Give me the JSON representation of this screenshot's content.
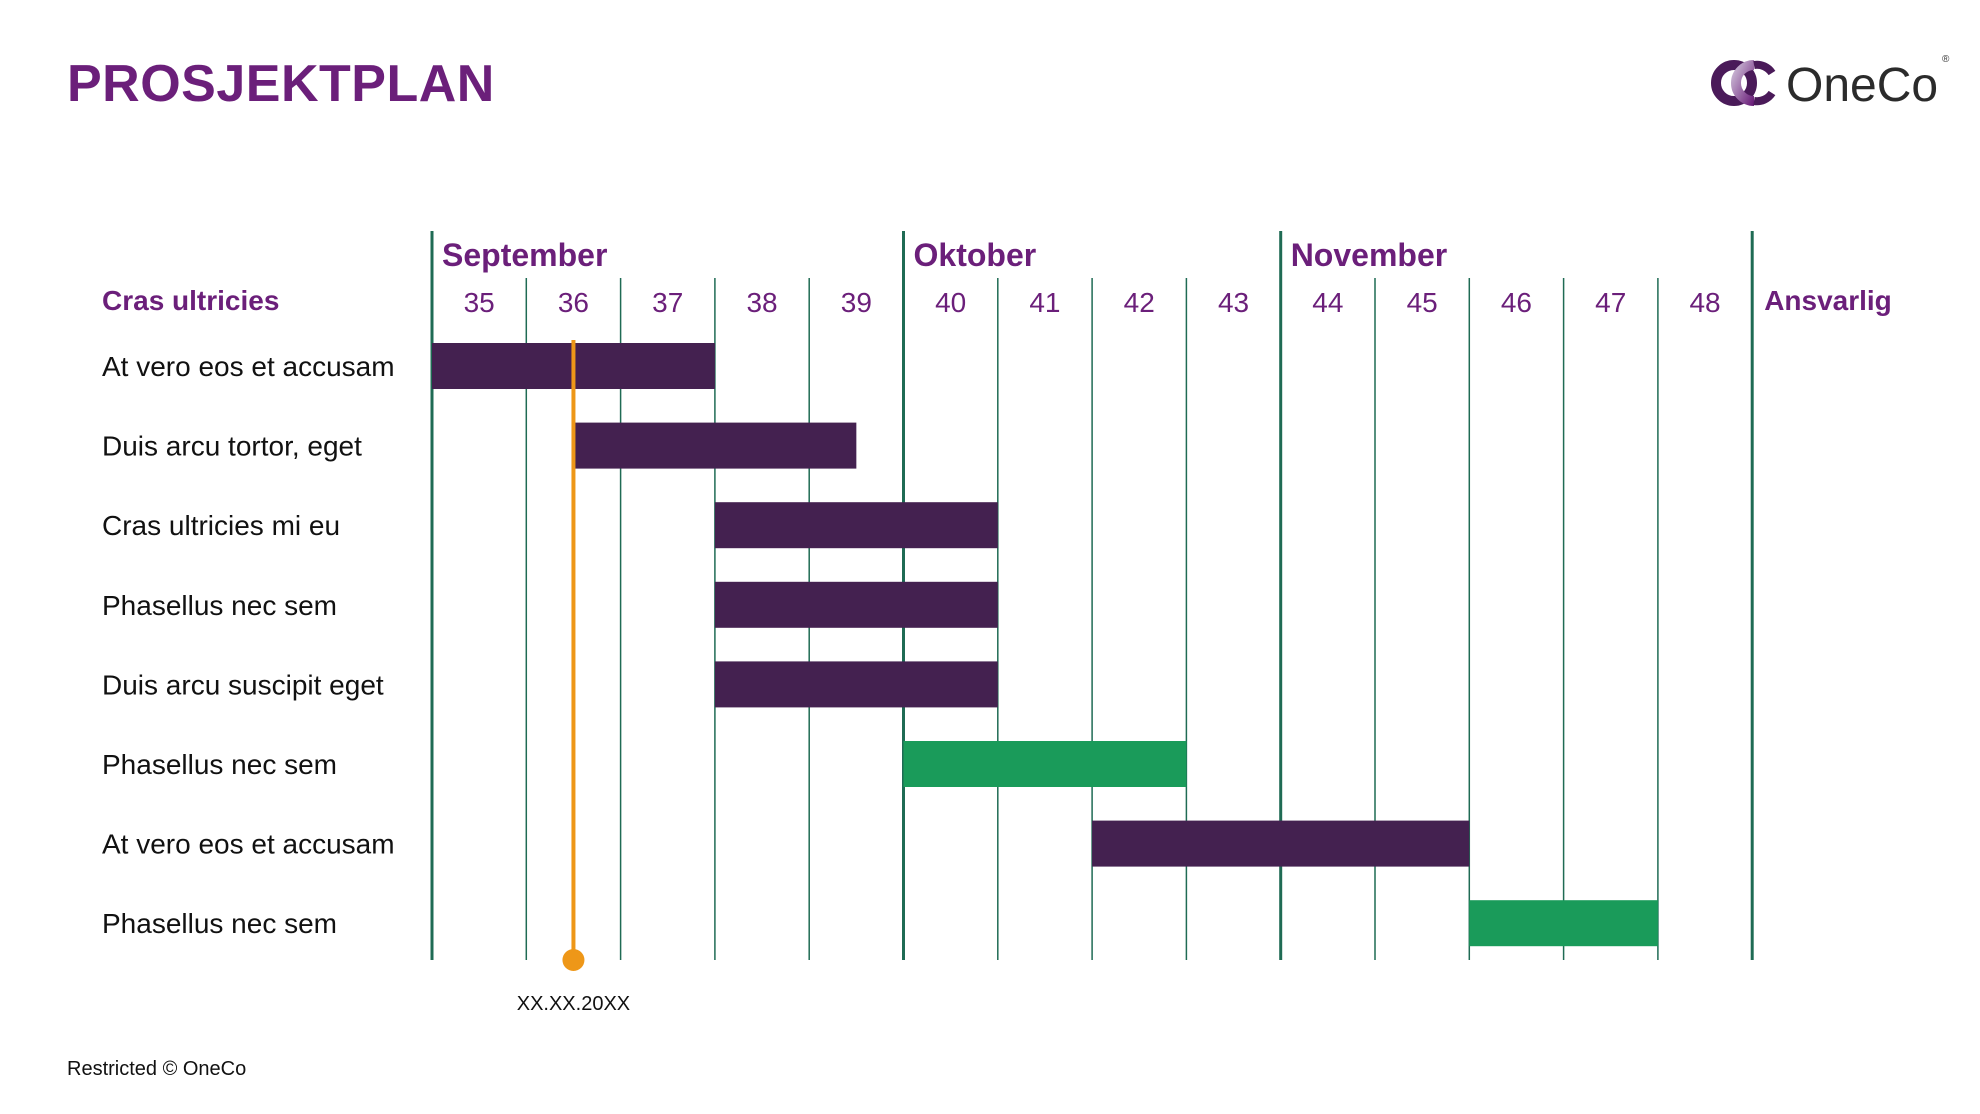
{
  "title": "PROSJEKTPLAN",
  "logo": {
    "text": "OneCo",
    "registered": "®"
  },
  "footer": "Restricted © OneCo",
  "colors": {
    "title": "#6b1f7a",
    "header": "#6b1f7a",
    "grid": "#1f6b54",
    "bar_purple": "#442150",
    "bar_green": "#1a9b5a",
    "milestone": "#ee9718"
  },
  "chart_data": {
    "type": "gantt",
    "task_column_header": "Cras ultricies",
    "responsible_header": "Ansvarlig",
    "months": [
      {
        "label": "September",
        "start_week": 35
      },
      {
        "label": "Oktober",
        "start_week": 40
      },
      {
        "label": "November",
        "start_week": 44
      }
    ],
    "weeks": [
      "35",
      "36",
      "37",
      "38",
      "39",
      "40",
      "41",
      "42",
      "43",
      "44",
      "45",
      "46",
      "47",
      "48"
    ],
    "tasks": [
      {
        "label": "At vero eos et accusam",
        "start_week": 35,
        "end_week": 37,
        "color": "purple"
      },
      {
        "label": "Duis arcu tortor, eget",
        "start_week": 36.5,
        "end_week": 38.5,
        "color": "purple"
      },
      {
        "label": "Cras ultricies mi eu",
        "start_week": 38,
        "end_week": 40,
        "color": "purple"
      },
      {
        "label": "Phasellus nec sem",
        "start_week": 38,
        "end_week": 40,
        "color": "purple"
      },
      {
        "label": "Duis arcu suscipit eget",
        "start_week": 38,
        "end_week": 40,
        "color": "purple"
      },
      {
        "label": "Phasellus nec sem",
        "start_week": 40,
        "end_week": 42,
        "color": "green"
      },
      {
        "label": "At vero eos et accusam",
        "start_week": 42,
        "end_week": 45,
        "color": "purple"
      },
      {
        "label": "Phasellus nec sem",
        "start_week": 46,
        "end_week": 47,
        "color": "green"
      }
    ],
    "milestone": {
      "week": 36.5,
      "label": "XX.XX.20XX"
    }
  }
}
